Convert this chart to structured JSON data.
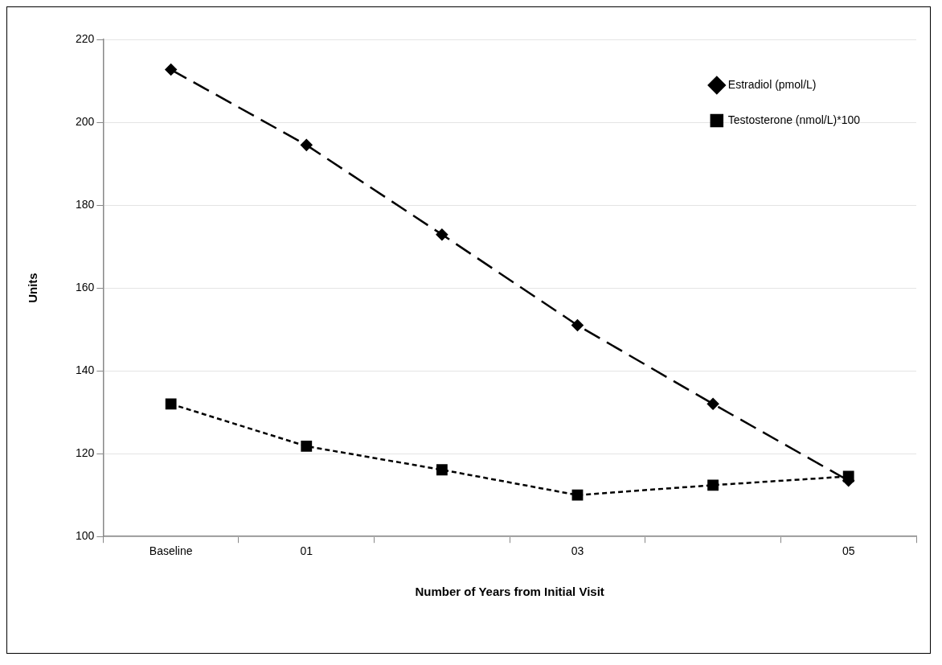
{
  "chart_data": {
    "type": "line",
    "xlabel": "Number of Years from Initial Visit",
    "ylabel": "Units",
    "categories": [
      "Baseline",
      "01",
      null,
      "03",
      null,
      "05"
    ],
    "series": [
      {
        "name": "Estradiol (pmol/L)",
        "color": "#000000",
        "marker": "diamond",
        "line_style": "dashed",
        "values": [
          212.7,
          194.5,
          172.9,
          151,
          132,
          113.5
        ]
      },
      {
        "name": "Testosterone (nmol/L)*100",
        "color": "#000000",
        "marker": "square",
        "line_style": "dotted",
        "values": [
          132,
          121.8,
          116.1,
          110,
          112.4,
          114.5
        ]
      }
    ],
    "ylim": [
      100,
      220
    ],
    "yticks": [
      100,
      120,
      140,
      160,
      180,
      200,
      220
    ],
    "grid": "y",
    "legend": "top right"
  }
}
